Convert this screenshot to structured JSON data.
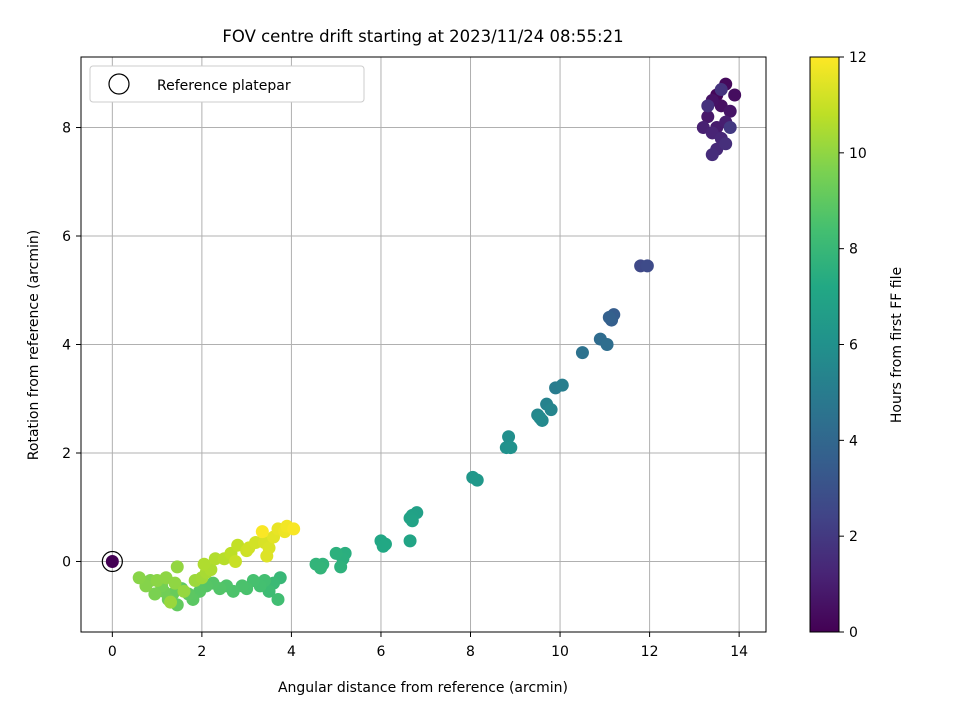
{
  "chart_data": {
    "type": "scatter",
    "title": "FOV centre drift starting at 2023/11/24 08:55:21",
    "xlabel": "Angular distance from reference (arcmin)",
    "ylabel": "Rotation from reference (arcmin)",
    "xlim": [
      -0.7,
      14.6
    ],
    "ylim": [
      -1.3,
      9.3
    ],
    "xticks": [
      "0",
      "2",
      "4",
      "6",
      "8",
      "10",
      "12",
      "14"
    ],
    "yticks": [
      "0",
      "2",
      "4",
      "6",
      "8"
    ],
    "grid": true,
    "legend": {
      "position": "top-left",
      "entries": [
        "Reference platepar"
      ]
    },
    "colorbar": {
      "label": "Hours from first FF file",
      "range": [
        0,
        12
      ],
      "ticks": [
        "0",
        "2",
        "4",
        "6",
        "8",
        "10",
        "12"
      ],
      "colormap": "viridis"
    },
    "reference_point": {
      "x": 0,
      "y": 0
    },
    "points": [
      {
        "x": 13.5,
        "y": 8.6,
        "h": 0.2
      },
      {
        "x": 13.7,
        "y": 8.8,
        "h": 0.3
      },
      {
        "x": 13.9,
        "y": 8.6,
        "h": 0.4
      },
      {
        "x": 13.6,
        "y": 8.4,
        "h": 0.5
      },
      {
        "x": 13.4,
        "y": 8.5,
        "h": 0.6
      },
      {
        "x": 13.8,
        "y": 8.3,
        "h": 0.7
      },
      {
        "x": 13.3,
        "y": 8.2,
        "h": 0.8
      },
      {
        "x": 13.5,
        "y": 8.0,
        "h": 0.9
      },
      {
        "x": 13.7,
        "y": 8.1,
        "h": 1.0
      },
      {
        "x": 13.2,
        "y": 8.0,
        "h": 1.1
      },
      {
        "x": 13.4,
        "y": 7.9,
        "h": 1.2
      },
      {
        "x": 13.6,
        "y": 7.8,
        "h": 1.3
      },
      {
        "x": 13.5,
        "y": 7.6,
        "h": 1.4
      },
      {
        "x": 13.4,
        "y": 7.5,
        "h": 1.5
      },
      {
        "x": 13.7,
        "y": 7.7,
        "h": 1.6
      },
      {
        "x": 13.3,
        "y": 8.4,
        "h": 1.7
      },
      {
        "x": 13.6,
        "y": 8.7,
        "h": 1.8
      },
      {
        "x": 13.8,
        "y": 8.0,
        "h": 2.0
      },
      {
        "x": 11.8,
        "y": 5.45,
        "h": 2.6
      },
      {
        "x": 11.95,
        "y": 5.45,
        "h": 2.7
      },
      {
        "x": 11.2,
        "y": 4.55,
        "h": 3.5
      },
      {
        "x": 11.15,
        "y": 4.45,
        "h": 3.6
      },
      {
        "x": 11.1,
        "y": 4.5,
        "h": 3.7
      },
      {
        "x": 10.9,
        "y": 4.1,
        "h": 4.2
      },
      {
        "x": 11.05,
        "y": 4.0,
        "h": 4.3
      },
      {
        "x": 10.5,
        "y": 3.85,
        "h": 4.5
      },
      {
        "x": 9.9,
        "y": 3.2,
        "h": 5.0
      },
      {
        "x": 10.05,
        "y": 3.25,
        "h": 5.1
      },
      {
        "x": 9.7,
        "y": 2.9,
        "h": 5.3
      },
      {
        "x": 9.8,
        "y": 2.8,
        "h": 5.4
      },
      {
        "x": 9.5,
        "y": 2.7,
        "h": 5.5
      },
      {
        "x": 9.6,
        "y": 2.6,
        "h": 5.6
      },
      {
        "x": 9.55,
        "y": 2.65,
        "h": 5.65
      },
      {
        "x": 8.85,
        "y": 2.3,
        "h": 5.9
      },
      {
        "x": 8.8,
        "y": 2.1,
        "h": 6.0
      },
      {
        "x": 8.9,
        "y": 2.1,
        "h": 6.05
      },
      {
        "x": 8.05,
        "y": 1.55,
        "h": 6.3
      },
      {
        "x": 8.15,
        "y": 1.5,
        "h": 6.35
      },
      {
        "x": 6.8,
        "y": 0.9,
        "h": 6.8
      },
      {
        "x": 6.7,
        "y": 0.85,
        "h": 6.85
      },
      {
        "x": 6.65,
        "y": 0.8,
        "h": 6.9
      },
      {
        "x": 6.7,
        "y": 0.75,
        "h": 6.95
      },
      {
        "x": 6.65,
        "y": 0.38,
        "h": 7.0
      },
      {
        "x": 6.0,
        "y": 0.38,
        "h": 7.1
      },
      {
        "x": 6.1,
        "y": 0.32,
        "h": 7.15
      },
      {
        "x": 6.05,
        "y": 0.28,
        "h": 7.2
      },
      {
        "x": 5.2,
        "y": 0.15,
        "h": 7.5
      },
      {
        "x": 5.15,
        "y": 0.05,
        "h": 7.55
      },
      {
        "x": 5.0,
        "y": 0.15,
        "h": 7.6
      },
      {
        "x": 5.1,
        "y": -0.1,
        "h": 7.65
      },
      {
        "x": 4.7,
        "y": -0.05,
        "h": 7.75
      },
      {
        "x": 4.55,
        "y": -0.05,
        "h": 7.8
      },
      {
        "x": 4.65,
        "y": -0.12,
        "h": 7.85
      },
      {
        "x": 3.75,
        "y": -0.3,
        "h": 8.0
      },
      {
        "x": 3.6,
        "y": -0.4,
        "h": 8.1
      },
      {
        "x": 3.5,
        "y": -0.55,
        "h": 8.2
      },
      {
        "x": 3.7,
        "y": -0.7,
        "h": 8.3
      },
      {
        "x": 3.4,
        "y": -0.35,
        "h": 8.35
      },
      {
        "x": 3.3,
        "y": -0.45,
        "h": 8.4
      },
      {
        "x": 3.15,
        "y": -0.35,
        "h": 8.45
      },
      {
        "x": 3.0,
        "y": -0.5,
        "h": 8.5
      },
      {
        "x": 2.9,
        "y": -0.45,
        "h": 8.55
      },
      {
        "x": 2.7,
        "y": -0.55,
        "h": 8.6
      },
      {
        "x": 2.55,
        "y": -0.45,
        "h": 8.65
      },
      {
        "x": 2.4,
        "y": -0.5,
        "h": 8.7
      },
      {
        "x": 2.25,
        "y": -0.4,
        "h": 8.75
      },
      {
        "x": 2.1,
        "y": -0.45,
        "h": 8.8
      },
      {
        "x": 1.95,
        "y": -0.55,
        "h": 8.85
      },
      {
        "x": 1.8,
        "y": -0.7,
        "h": 8.9
      },
      {
        "x": 1.7,
        "y": -0.6,
        "h": 8.95
      },
      {
        "x": 1.55,
        "y": -0.5,
        "h": 9.0
      },
      {
        "x": 1.45,
        "y": -0.8,
        "h": 9.1
      },
      {
        "x": 1.35,
        "y": -0.6,
        "h": 9.2
      },
      {
        "x": 1.25,
        "y": -0.7,
        "h": 9.3
      },
      {
        "x": 1.15,
        "y": -0.55,
        "h": 9.4
      },
      {
        "x": 1.1,
        "y": -0.45,
        "h": 9.5
      },
      {
        "x": 0.95,
        "y": -0.6,
        "h": 9.6
      },
      {
        "x": 0.85,
        "y": -0.35,
        "h": 9.7
      },
      {
        "x": 0.75,
        "y": -0.45,
        "h": 9.8
      },
      {
        "x": 0.6,
        "y": -0.3,
        "h": 9.85
      },
      {
        "x": 1.0,
        "y": -0.35,
        "h": 9.9
      },
      {
        "x": 1.2,
        "y": -0.3,
        "h": 9.95
      },
      {
        "x": 1.4,
        "y": -0.4,
        "h": 10.0
      },
      {
        "x": 1.45,
        "y": -0.1,
        "h": 10.05
      },
      {
        "x": 1.6,
        "y": -0.55,
        "h": 10.1
      },
      {
        "x": 1.3,
        "y": -0.75,
        "h": 10.15
      },
      {
        "x": 1.85,
        "y": -0.35,
        "h": 10.2
      },
      {
        "x": 2.0,
        "y": -0.3,
        "h": 10.3
      },
      {
        "x": 2.1,
        "y": -0.2,
        "h": 10.4
      },
      {
        "x": 2.2,
        "y": -0.15,
        "h": 10.5
      },
      {
        "x": 2.05,
        "y": -0.05,
        "h": 10.55
      },
      {
        "x": 2.3,
        "y": 0.05,
        "h": 10.6
      },
      {
        "x": 2.5,
        "y": 0.05,
        "h": 10.7
      },
      {
        "x": 2.65,
        "y": 0.15,
        "h": 10.8
      },
      {
        "x": 2.8,
        "y": 0.3,
        "h": 10.9
      },
      {
        "x": 2.75,
        "y": 0.0,
        "h": 11.0
      },
      {
        "x": 3.0,
        "y": 0.2,
        "h": 11.1
      },
      {
        "x": 3.05,
        "y": 0.25,
        "h": 11.15
      },
      {
        "x": 3.2,
        "y": 0.35,
        "h": 11.2
      },
      {
        "x": 3.4,
        "y": 0.35,
        "h": 11.3
      },
      {
        "x": 3.5,
        "y": 0.25,
        "h": 11.35
      },
      {
        "x": 3.45,
        "y": 0.1,
        "h": 11.4
      },
      {
        "x": 3.6,
        "y": 0.45,
        "h": 11.5
      },
      {
        "x": 3.7,
        "y": 0.6,
        "h": 11.6
      },
      {
        "x": 3.85,
        "y": 0.55,
        "h": 11.7
      },
      {
        "x": 3.9,
        "y": 0.65,
        "h": 11.8
      },
      {
        "x": 4.05,
        "y": 0.6,
        "h": 11.9
      },
      {
        "x": 3.35,
        "y": 0.55,
        "h": 11.95
      }
    ]
  }
}
